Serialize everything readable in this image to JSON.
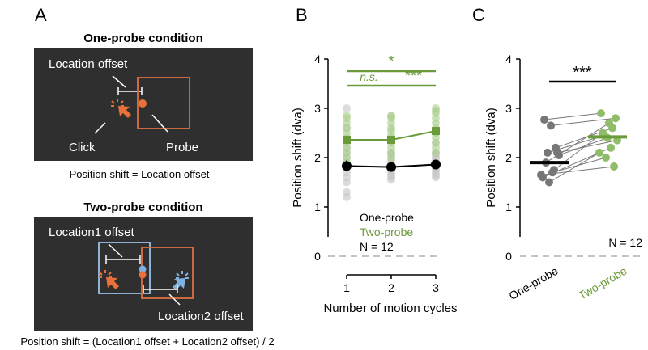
{
  "panel_a": {
    "letter": "A",
    "one_probe": {
      "title": "One-probe condition",
      "offset_label": "Location offset",
      "click_label": "Click",
      "probe_label": "Probe",
      "formula": "Position shift = Location offset"
    },
    "two_probe": {
      "title": "Two-probe condition",
      "offset1_label": "Location1 offset",
      "offset2_label": "Location2 offset",
      "formula": "Position shift = (Location1 offset + Location2 offset) / 2"
    }
  },
  "colors": {
    "dark_panel": "#2f2f2f",
    "orange": "#e8703a",
    "box_orange": "#c96a3f",
    "blue": "#7fb0e0",
    "box_blue": "#8fb3d6",
    "green": "#6a9a3a",
    "green_light": "#a8cf8a",
    "gray_light": "#c4c4c4",
    "black": "#000000"
  },
  "chart_data": [
    {
      "panel": "B",
      "type": "line",
      "xlabel": "Number of motion cycles",
      "ylabel": "Position shift (dva)",
      "x": [
        1,
        2,
        3
      ],
      "xticks": [
        "1",
        "2",
        "3"
      ],
      "ylim": [
        0,
        4
      ],
      "yticks": [
        "0",
        "1",
        "2",
        "3",
        "4"
      ],
      "series": [
        {
          "name": "One-probe",
          "mean": [
            1.83,
            1.81,
            1.86
          ],
          "sem": [
            0.11,
            0.08,
            0.08
          ],
          "subjects": [
            [
              1.2,
              1.3,
              1.5,
              1.6,
              1.7,
              1.8,
              1.9,
              2.0,
              2.1,
              2.2,
              2.6,
              3.0
            ],
            [
              1.55,
              1.6,
              1.65,
              1.7,
              1.75,
              1.8,
              1.85,
              1.9,
              1.95,
              2.05,
              2.1,
              2.85
            ],
            [
              1.6,
              1.65,
              1.7,
              1.75,
              1.8,
              1.85,
              1.9,
              1.95,
              2.0,
              2.05,
              2.1,
              2.3
            ]
          ]
        },
        {
          "name": "Two-probe",
          "mean": [
            2.36,
            2.36,
            2.54
          ],
          "sem": [
            0.08,
            0.08,
            0.08
          ],
          "subjects": [
            [
              1.9,
              2.0,
              2.1,
              2.2,
              2.3,
              2.35,
              2.4,
              2.5,
              2.6,
              2.7,
              2.8,
              2.85
            ],
            [
              2.0,
              2.1,
              2.2,
              2.3,
              2.35,
              2.4,
              2.45,
              2.55,
              2.6,
              2.7,
              2.8,
              2.85
            ],
            [
              2.1,
              2.2,
              2.3,
              2.4,
              2.5,
              2.55,
              2.6,
              2.7,
              2.8,
              2.9,
              2.95,
              3.0
            ]
          ]
        }
      ],
      "legend": [
        "One-probe",
        "Two-probe",
        "N = 12"
      ],
      "annotations": [
        {
          "text": "*",
          "from": 1,
          "to": 3
        },
        {
          "text": "n.s.",
          "from": 1,
          "to": 2
        },
        {
          "text": "***",
          "from": 2,
          "to": 3
        }
      ]
    },
    {
      "panel": "C",
      "type": "scatter",
      "ylabel": "Position shift (dva)",
      "categories": [
        "One-probe",
        "Two-probe"
      ],
      "ylim": [
        0,
        4
      ],
      "yticks": [
        "0",
        "1",
        "2",
        "3",
        "4"
      ],
      "means": [
        1.9,
        2.42
      ],
      "pairs": [
        [
          2.77,
          2.9
        ],
        [
          2.65,
          2.8
        ],
        [
          2.2,
          2.6
        ],
        [
          2.1,
          2.45
        ],
        [
          1.5,
          2.1
        ],
        [
          1.6,
          2.2
        ],
        [
          2.1,
          2.35
        ],
        [
          1.75,
          2.5
        ],
        [
          1.9,
          2.7
        ],
        [
          1.65,
          1.82
        ],
        [
          1.7,
          2.0
        ],
        [
          2.05,
          2.4
        ]
      ],
      "significance": "***",
      "n_label": "N = 12"
    }
  ]
}
